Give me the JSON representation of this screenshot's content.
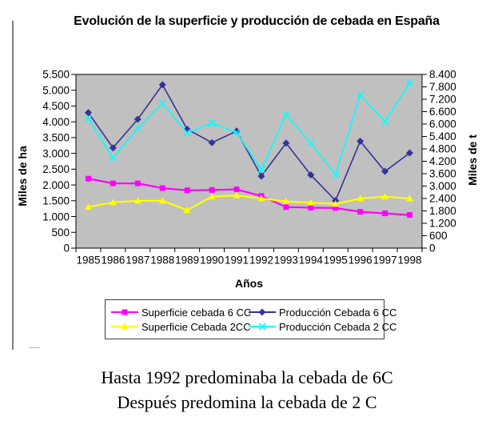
{
  "caption": {
    "line1": "Hasta 1992 predominaba la cebada de 6C",
    "line2": "Después predomina la cebada de 2 C"
  },
  "chart_data": {
    "type": "line",
    "title": "Evolución de la superficie y producción de cebada en España",
    "xlabel": "Años",
    "ylabel_left": "Miles de ha",
    "ylabel_right": "Miles de t",
    "plot_bg": "#c0c0c0",
    "grid": false,
    "legend_position": "bottom",
    "categories": [
      1985,
      1986,
      1987,
      1988,
      1989,
      1990,
      1991,
      1992,
      1993,
      1994,
      1995,
      1996,
      1997,
      1998
    ],
    "left_axis": {
      "min": 0,
      "max": 5500,
      "step": 500,
      "tick_labels": [
        "0",
        "500",
        "1.000",
        "1.500",
        "2.000",
        "2.500",
        "3.000",
        "3.500",
        "4.000",
        "4.500",
        "5.000",
        "5.500"
      ]
    },
    "right_axis": {
      "min": 0,
      "max": 8400,
      "step": 600,
      "tick_labels": [
        "0",
        "600",
        "1.200",
        "1.800",
        "2.400",
        "3.000",
        "3.600",
        "4.200",
        "4.800",
        "5.400",
        "6.000",
        "6.600",
        "7.200",
        "7.800",
        "8.400"
      ]
    },
    "series": [
      {
        "name": "Superficie cebada 6 CC",
        "axis": "left",
        "color": "#ff00ff",
        "marker": "square",
        "values": [
          2200,
          2050,
          2050,
          1900,
          1830,
          1840,
          1860,
          1650,
          1300,
          1280,
          1270,
          1150,
          1100,
          1050
        ]
      },
      {
        "name": "Producción Cebada 6 CC",
        "axis": "right",
        "color": "#333399",
        "marker": "diamond",
        "values": [
          6550,
          4850,
          6230,
          7900,
          5750,
          5100,
          5660,
          3480,
          5080,
          3540,
          2300,
          5170,
          3710,
          4600
        ]
      },
      {
        "name": "Superficie Cebada 2CC",
        "axis": "left",
        "color": "#ffff00",
        "marker": "triangle",
        "values": [
          1300,
          1450,
          1500,
          1500,
          1200,
          1630,
          1670,
          1570,
          1480,
          1440,
          1400,
          1570,
          1630,
          1570
        ]
      },
      {
        "name": "Producción Cebada 2 CC",
        "axis": "right",
        "color": "#00ffff",
        "marker": "x",
        "values": [
          6270,
          4370,
          5790,
          7000,
          5580,
          6050,
          5580,
          3800,
          6450,
          5080,
          3550,
          7400,
          6120,
          8000
        ]
      }
    ]
  }
}
